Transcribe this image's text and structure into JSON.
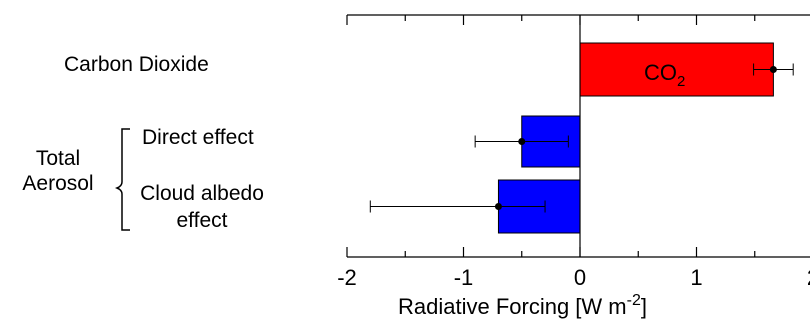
{
  "chart_data": {
    "type": "bar",
    "orientation": "horizontal",
    "xlabel_text": "Radiative Forcing [W m",
    "xlabel_exponent": "-2",
    "xlabel_close": "]",
    "xlim": [
      -2,
      2
    ],
    "xticks": [
      -2,
      -1,
      0,
      1,
      2
    ],
    "xtick_labels": [
      "-2",
      "-1",
      "0",
      "1",
      "2"
    ],
    "grid": false,
    "categories": [
      {
        "label": "Carbon Dioxide",
        "value": 1.66,
        "err_low": 1.49,
        "err_high": 1.83,
        "color": "#ff0000",
        "bar_text": "CO",
        "bar_text_sub": "2"
      },
      {
        "label": "Direct effect",
        "value": -0.5,
        "err_low": -0.9,
        "err_high": -0.1,
        "color": "#0000ff"
      },
      {
        "label_line1": "Cloud albedo",
        "label_line2": "effect",
        "value": -0.7,
        "err_low": -1.8,
        "err_high": -0.3,
        "color": "#0000ff"
      }
    ],
    "group": {
      "line1": "Total",
      "line2": "Aerosol"
    }
  }
}
